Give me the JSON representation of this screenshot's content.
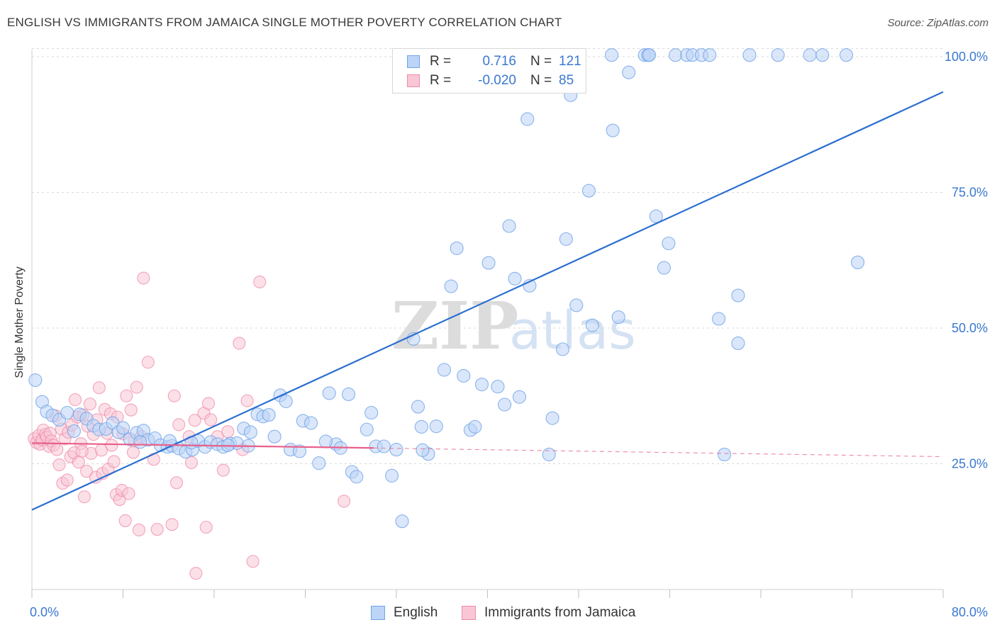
{
  "header": {
    "title": "ENGLISH VS IMMIGRANTS FROM JAMAICA SINGLE MOTHER POVERTY CORRELATION CHART",
    "source": "Source: ZipAtlas.com"
  },
  "watermark": {
    "part1": "ZIP",
    "part2": "atlas"
  },
  "colors": {
    "english": "#6fa3e8",
    "english_fill": "#bcd4f5",
    "english_line": "#2a6fd0",
    "jamaica": "#f08aa8",
    "jamaica_fill": "#f8c6d5",
    "jamaica_line": "#e8608a",
    "axis_label": "#3a78d0",
    "grid": "#d8d8d8"
  },
  "legend": {
    "english": {
      "r_label": "R =",
      "r_value": "0.716",
      "n_label": "N =",
      "n_value": "121"
    },
    "jamaica": {
      "r_label": "R =",
      "r_value": "-0.020",
      "n_label": "N =",
      "n_value": "85"
    }
  },
  "bottom_legend": {
    "english": "English",
    "jamaica": "Immigrants from Jamaica"
  },
  "chart_data": {
    "type": "scatter",
    "title": "ENGLISH VS IMMIGRANTS FROM JAMAICA SINGLE MOTHER POVERTY CORRELATION CHART",
    "xlabel": "",
    "ylabel": "Single Mother Poverty",
    "xlim": [
      0,
      80
    ],
    "ylim": [
      2,
      103
    ],
    "x_tick_labels": [
      "0.0%",
      "80.0%"
    ],
    "y_tick_labels": [
      "25.0%",
      "50.0%",
      "75.0%",
      "100.0%"
    ],
    "y_ticks": [
      25,
      50,
      75,
      100
    ],
    "grid": true,
    "legend_position": "top-center",
    "series": [
      {
        "name": "English",
        "r": 0.716,
        "n": 121,
        "trend": {
          "x": [
            0,
            80
          ],
          "y": [
            16.5,
            93.5
          ],
          "style": "solid"
        },
        "points": [
          [
            0.3,
            40.4
          ],
          [
            0.9,
            36.4
          ],
          [
            1.3,
            34.6
          ],
          [
            1.8,
            33.9
          ],
          [
            2.4,
            33.1
          ],
          [
            3.1,
            34.4
          ],
          [
            3.7,
            31.0
          ],
          [
            4.2,
            34.1
          ],
          [
            4.8,
            33.3
          ],
          [
            5.4,
            32.0
          ],
          [
            5.9,
            31.3
          ],
          [
            6.5,
            31.4
          ],
          [
            7.1,
            32.5
          ],
          [
            7.6,
            30.8
          ],
          [
            8.0,
            31.6
          ],
          [
            8.6,
            29.5
          ],
          [
            9.2,
            30.7
          ],
          [
            9.8,
            31.1
          ],
          [
            10.2,
            29.4
          ],
          [
            10.8,
            29.7
          ],
          [
            11.3,
            28.4
          ],
          [
            11.9,
            28.1
          ],
          [
            12.3,
            28.3
          ],
          [
            12.9,
            27.8
          ],
          [
            13.5,
            27.2
          ],
          [
            14.1,
            27.6
          ],
          [
            14.6,
            29.2
          ],
          [
            15.2,
            28.1
          ],
          [
            15.7,
            29.0
          ],
          [
            16.3,
            28.6
          ],
          [
            16.8,
            28.1
          ],
          [
            17.4,
            28.7
          ],
          [
            18.0,
            28.8
          ],
          [
            18.6,
            31.5
          ],
          [
            19.2,
            30.8
          ],
          [
            19.8,
            34.1
          ],
          [
            20.3,
            33.7
          ],
          [
            20.8,
            34.0
          ],
          [
            21.3,
            30.0
          ],
          [
            21.8,
            37.6
          ],
          [
            22.3,
            36.5
          ],
          [
            22.7,
            27.6
          ],
          [
            23.8,
            32.9
          ],
          [
            24.5,
            32.5
          ],
          [
            25.2,
            25.1
          ],
          [
            26.1,
            38.0
          ],
          [
            26.7,
            28.6
          ],
          [
            27.1,
            27.9
          ],
          [
            27.8,
            37.8
          ],
          [
            28.1,
            23.5
          ],
          [
            28.5,
            22.6
          ],
          [
            29.4,
            31.3
          ],
          [
            29.8,
            34.4
          ],
          [
            30.2,
            28.2
          ],
          [
            30.9,
            28.2
          ],
          [
            31.6,
            22.8
          ],
          [
            32.0,
            27.6
          ],
          [
            32.5,
            14.4
          ],
          [
            33.5,
            48.0
          ],
          [
            33.9,
            35.5
          ],
          [
            34.2,
            31.8
          ],
          [
            34.8,
            26.8
          ],
          [
            35.5,
            31.9
          ],
          [
            36.2,
            42.3
          ],
          [
            36.8,
            57.7
          ],
          [
            37.3,
            64.7
          ],
          [
            37.9,
            41.2
          ],
          [
            38.5,
            31.2
          ],
          [
            38.9,
            31.8
          ],
          [
            39.5,
            39.6
          ],
          [
            40.1,
            62.0
          ],
          [
            40.9,
            39.2
          ],
          [
            41.5,
            35.9
          ],
          [
            41.9,
            68.8
          ],
          [
            42.4,
            59.1
          ],
          [
            42.8,
            37.3
          ],
          [
            43.5,
            88.5
          ],
          [
            43.7,
            57.8
          ],
          [
            44.5,
            100.3
          ],
          [
            45.0,
            100.3
          ],
          [
            45.4,
            26.7
          ],
          [
            45.7,
            33.4
          ],
          [
            46.6,
            46.1
          ],
          [
            46.9,
            66.4
          ],
          [
            47.3,
            92.9
          ],
          [
            47.8,
            54.2
          ],
          [
            48.9,
            75.3
          ],
          [
            49.2,
            50.5
          ],
          [
            50.9,
            100.3
          ],
          [
            51.0,
            86.4
          ],
          [
            51.5,
            52.0
          ],
          [
            52.4,
            97.1
          ],
          [
            53.8,
            100.3
          ],
          [
            54.1,
            100.3
          ],
          [
            54.2,
            100.3
          ],
          [
            54.8,
            70.6
          ],
          [
            55.5,
            61.1
          ],
          [
            55.9,
            65.6
          ],
          [
            56.5,
            100.3
          ],
          [
            57.5,
            100.3
          ],
          [
            58.0,
            100.3
          ],
          [
            58.8,
            100.3
          ],
          [
            59.5,
            100.3
          ],
          [
            60.3,
            51.7
          ],
          [
            60.8,
            26.7
          ],
          [
            62.0,
            56.0
          ],
          [
            62.0,
            47.2
          ],
          [
            63.0,
            100.3
          ],
          [
            65.5,
            100.3
          ],
          [
            68.3,
            100.3
          ],
          [
            69.4,
            100.3
          ],
          [
            71.5,
            100.3
          ],
          [
            72.5,
            62.1
          ],
          [
            9.5,
            29.0
          ],
          [
            12.1,
            29.2
          ],
          [
            14.0,
            28.9
          ],
          [
            17.2,
            28.4
          ],
          [
            19.0,
            28.3
          ],
          [
            25.8,
            29.1
          ],
          [
            34.3,
            27.5
          ],
          [
            23.5,
            27.3
          ]
        ]
      },
      {
        "name": "Immigrants from Jamaica",
        "r": -0.02,
        "n": 85,
        "trend": {
          "x": [
            0,
            30
          ],
          "y": [
            28.8,
            27.9
          ],
          "style": "solid",
          "extension": {
            "x": [
              30,
              80
            ],
            "y": [
              27.9,
              26.3
            ],
            "style": "dashed"
          }
        },
        "points": [
          [
            0.2,
            29.6
          ],
          [
            0.4,
            28.9
          ],
          [
            0.6,
            30.2
          ],
          [
            0.7,
            28.6
          ],
          [
            0.9,
            29.4
          ],
          [
            1.0,
            31.2
          ],
          [
            1.2,
            30.4
          ],
          [
            1.3,
            29.9
          ],
          [
            1.5,
            28.2
          ],
          [
            1.6,
            30.6
          ],
          [
            1.7,
            29.2
          ],
          [
            1.9,
            28.4
          ],
          [
            2.1,
            33.8
          ],
          [
            2.2,
            27.6
          ],
          [
            2.4,
            24.8
          ],
          [
            2.6,
            31.4
          ],
          [
            2.7,
            21.4
          ],
          [
            2.9,
            29.6
          ],
          [
            3.1,
            22.0
          ],
          [
            3.2,
            30.8
          ],
          [
            3.4,
            26.3
          ],
          [
            3.5,
            32.1
          ],
          [
            3.7,
            27.0
          ],
          [
            3.8,
            36.8
          ],
          [
            4.0,
            33.6
          ],
          [
            4.1,
            25.3
          ],
          [
            4.3,
            28.7
          ],
          [
            4.5,
            34.0
          ],
          [
            4.6,
            18.9
          ],
          [
            4.8,
            23.6
          ],
          [
            4.9,
            31.9
          ],
          [
            5.1,
            36.0
          ],
          [
            5.2,
            26.9
          ],
          [
            5.4,
            30.4
          ],
          [
            5.6,
            22.5
          ],
          [
            5.7,
            33.1
          ],
          [
            5.9,
            39.0
          ],
          [
            6.1,
            27.5
          ],
          [
            6.2,
            23.2
          ],
          [
            6.4,
            35.0
          ],
          [
            6.6,
            30.6
          ],
          [
            6.7,
            24.0
          ],
          [
            6.9,
            34.2
          ],
          [
            7.0,
            28.4
          ],
          [
            7.2,
            25.4
          ],
          [
            7.4,
            19.3
          ],
          [
            7.5,
            33.6
          ],
          [
            7.7,
            18.4
          ],
          [
            7.9,
            20.1
          ],
          [
            8.0,
            30.5
          ],
          [
            8.2,
            14.5
          ],
          [
            8.3,
            37.5
          ],
          [
            8.5,
            19.5
          ],
          [
            8.7,
            34.9
          ],
          [
            8.9,
            27.1
          ],
          [
            9.0,
            29.2
          ],
          [
            9.2,
            39.1
          ],
          [
            9.4,
            12.8
          ],
          [
            9.6,
            30.0
          ],
          [
            9.8,
            59.2
          ],
          [
            10.2,
            43.7
          ],
          [
            10.7,
            25.8
          ],
          [
            11.0,
            12.9
          ],
          [
            12.3,
            13.8
          ],
          [
            12.5,
            37.5
          ],
          [
            12.7,
            21.5
          ],
          [
            12.9,
            32.2
          ],
          [
            13.8,
            30.0
          ],
          [
            14.0,
            25.2
          ],
          [
            14.3,
            33.0
          ],
          [
            14.4,
            4.8
          ],
          [
            15.1,
            34.3
          ],
          [
            15.3,
            13.3
          ],
          [
            15.5,
            36.1
          ],
          [
            15.7,
            33.1
          ],
          [
            16.3,
            30.0
          ],
          [
            16.8,
            23.8
          ],
          [
            17.2,
            30.9
          ],
          [
            18.2,
            47.2
          ],
          [
            18.5,
            27.6
          ],
          [
            18.9,
            36.6
          ],
          [
            19.4,
            7.0
          ],
          [
            20.0,
            58.5
          ],
          [
            27.4,
            18.1
          ],
          [
            4.4,
            27.3
          ]
        ]
      }
    ]
  }
}
